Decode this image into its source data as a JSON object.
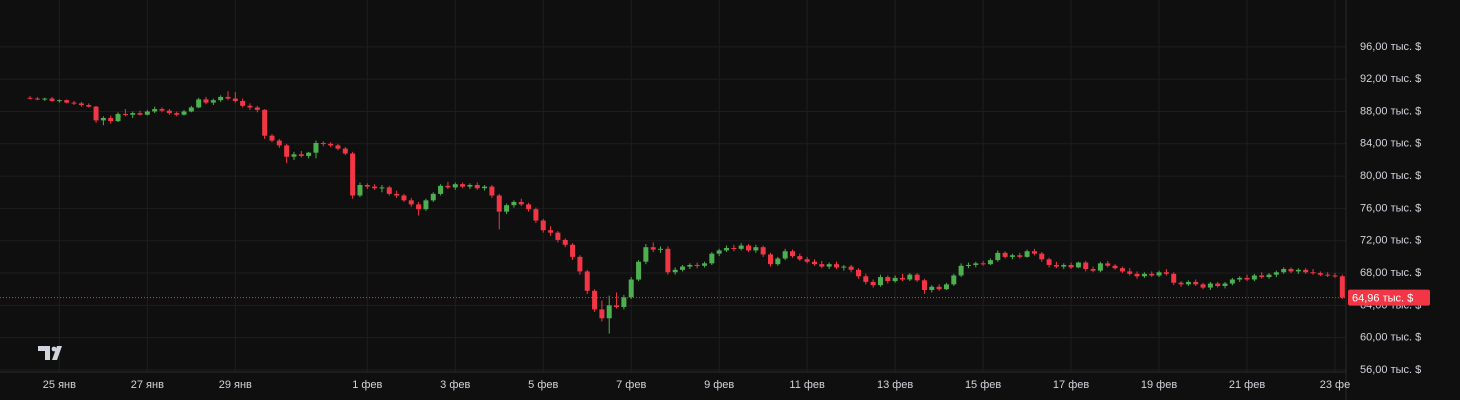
{
  "chart_data": {
    "type": "candlestick",
    "up_color": "#4caf50",
    "down_color": "#f23645",
    "grid": true,
    "ylim": [
      55.75,
      101.8
    ],
    "yticks": [
      {
        "value": 56,
        "label": "56,00 тыс. $"
      },
      {
        "value": 60,
        "label": "60,00 тыс. $"
      },
      {
        "value": 64,
        "label": "64,00 тыс. $"
      },
      {
        "value": 68,
        "label": "68,00 тыс. $"
      },
      {
        "value": 72,
        "label": "72,00 тыс. $"
      },
      {
        "value": 76,
        "label": "76,00 тыс. $"
      },
      {
        "value": 80,
        "label": "80,00 тыс. $"
      },
      {
        "value": 84,
        "label": "84,00 тыс. $"
      },
      {
        "value": 88,
        "label": "88,00 тыс. $"
      },
      {
        "value": 92,
        "label": "92,00 тыс. $"
      },
      {
        "value": 96,
        "label": "96,00 тыс. $"
      }
    ],
    "xlim": [
      -4.1,
      179.5
    ],
    "xticks": [
      {
        "value": 4,
        "label": "25 янв"
      },
      {
        "value": 16,
        "label": "27 янв"
      },
      {
        "value": 28,
        "label": "29 янв"
      },
      {
        "value": 46,
        "label": "1 фев"
      },
      {
        "value": 58,
        "label": "3 фев"
      },
      {
        "value": 70,
        "label": "5 фев"
      },
      {
        "value": 82,
        "label": "7 фев"
      },
      {
        "value": 94,
        "label": "9 фев"
      },
      {
        "value": 106,
        "label": "11 фев"
      },
      {
        "value": 118,
        "label": "13 фев"
      },
      {
        "value": 130,
        "label": "15 фев"
      },
      {
        "value": 142,
        "label": "17 фев"
      },
      {
        "value": 154,
        "label": "19 фев"
      },
      {
        "value": 166,
        "label": "21 фев"
      },
      {
        "value": 178,
        "label": "23 фе"
      }
    ],
    "last_price": 64.96,
    "last_price_label": "64,96 тыс. $",
    "ohlc": [
      [
        89.7,
        89.9,
        89.5,
        89.6
      ],
      [
        89.6,
        89.8,
        89.4,
        89.5
      ],
      [
        89.5,
        89.7,
        89.3,
        89.6
      ],
      [
        89.6,
        89.8,
        89.2,
        89.3
      ],
      [
        89.3,
        89.5,
        89.1,
        89.4
      ],
      [
        89.4,
        89.5,
        89.0,
        89.1
      ],
      [
        89.1,
        89.3,
        88.8,
        89.0
      ],
      [
        89.0,
        89.2,
        88.6,
        88.8
      ],
      [
        88.8,
        89.0,
        88.5,
        88.6
      ],
      [
        88.6,
        88.7,
        86.6,
        86.9
      ],
      [
        86.9,
        87.4,
        86.3,
        87.2
      ],
      [
        87.2,
        87.5,
        86.5,
        86.8
      ],
      [
        86.8,
        87.9,
        86.7,
        87.7
      ],
      [
        87.7,
        88.3,
        87.4,
        87.6
      ],
      [
        87.6,
        88.0,
        87.2,
        87.8
      ],
      [
        87.8,
        88.1,
        87.5,
        87.6
      ],
      [
        87.6,
        88.2,
        87.5,
        88.0
      ],
      [
        88.0,
        88.6,
        87.8,
        88.3
      ],
      [
        88.3,
        88.5,
        87.9,
        88.1
      ],
      [
        88.1,
        88.3,
        87.6,
        87.8
      ],
      [
        87.8,
        88.0,
        87.4,
        87.6
      ],
      [
        87.6,
        88.2,
        87.5,
        88.0
      ],
      [
        88.0,
        88.7,
        87.9,
        88.5
      ],
      [
        88.5,
        89.7,
        88.4,
        89.5
      ],
      [
        89.5,
        89.8,
        88.9,
        89.1
      ],
      [
        89.1,
        89.6,
        88.8,
        89.4
      ],
      [
        89.4,
        90.0,
        89.2,
        89.8
      ],
      [
        89.8,
        90.5,
        89.4,
        89.6
      ],
      [
        89.6,
        90.4,
        89.1,
        89.3
      ],
      [
        89.3,
        89.6,
        88.5,
        88.7
      ],
      [
        88.7,
        89.0,
        88.2,
        88.5
      ],
      [
        88.5,
        88.7,
        87.9,
        88.2
      ],
      [
        88.2,
        88.3,
        84.6,
        85.0
      ],
      [
        85.0,
        85.2,
        84.2,
        84.4
      ],
      [
        84.4,
        84.6,
        83.5,
        83.8
      ],
      [
        83.8,
        84.0,
        81.6,
        82.4
      ],
      [
        82.4,
        83.0,
        82.0,
        82.7
      ],
      [
        82.7,
        83.1,
        82.3,
        82.5
      ],
      [
        82.5,
        83.0,
        82.2,
        82.9
      ],
      [
        82.9,
        84.4,
        82.2,
        84.1
      ],
      [
        84.1,
        84.3,
        83.7,
        84.0
      ],
      [
        84.0,
        84.2,
        83.6,
        83.8
      ],
      [
        83.8,
        84.0,
        83.2,
        83.4
      ],
      [
        83.4,
        83.6,
        82.6,
        82.8
      ],
      [
        82.8,
        83.0,
        77.2,
        77.6
      ],
      [
        77.6,
        79.2,
        77.4,
        78.9
      ],
      [
        78.9,
        79.1,
        78.4,
        78.7
      ],
      [
        78.7,
        79.0,
        78.3,
        78.5
      ],
      [
        78.5,
        78.9,
        78.0,
        78.6
      ],
      [
        78.6,
        78.8,
        77.6,
        77.8
      ],
      [
        77.8,
        78.2,
        77.3,
        77.6
      ],
      [
        77.6,
        77.8,
        76.8,
        77.0
      ],
      [
        77.0,
        77.3,
        76.2,
        76.5
      ],
      [
        76.5,
        76.8,
        75.1,
        75.9
      ],
      [
        75.9,
        77.2,
        75.7,
        77.0
      ],
      [
        77.0,
        78.0,
        76.8,
        77.8
      ],
      [
        77.8,
        79.0,
        77.6,
        78.8
      ],
      [
        78.8,
        79.3,
        78.4,
        78.6
      ],
      [
        78.6,
        79.2,
        78.3,
        79.0
      ],
      [
        79.0,
        79.2,
        78.5,
        78.7
      ],
      [
        78.7,
        79.1,
        78.4,
        78.9
      ],
      [
        78.9,
        79.2,
        78.3,
        78.5
      ],
      [
        78.5,
        78.9,
        78.2,
        78.7
      ],
      [
        78.7,
        78.9,
        77.3,
        77.6
      ],
      [
        77.6,
        77.8,
        73.4,
        75.6
      ],
      [
        75.6,
        76.6,
        75.3,
        76.4
      ],
      [
        76.4,
        77.0,
        76.1,
        76.8
      ],
      [
        76.8,
        77.2,
        76.3,
        76.5
      ],
      [
        76.5,
        76.7,
        75.6,
        75.9
      ],
      [
        75.9,
        76.1,
        74.2,
        74.5
      ],
      [
        74.5,
        74.7,
        73.0,
        73.3
      ],
      [
        73.3,
        73.8,
        72.6,
        73.0
      ],
      [
        73.0,
        73.2,
        71.8,
        72.1
      ],
      [
        72.1,
        72.3,
        71.2,
        71.5
      ],
      [
        71.5,
        71.7,
        69.6,
        70.0
      ],
      [
        70.0,
        70.2,
        67.8,
        68.2
      ],
      [
        68.2,
        68.4,
        65.4,
        65.8
      ],
      [
        65.8,
        66.0,
        63.2,
        63.5
      ],
      [
        63.5,
        64.6,
        62.0,
        62.4
      ],
      [
        62.4,
        65.2,
        60.5,
        64.0
      ],
      [
        64.0,
        65.6,
        63.6,
        63.8
      ],
      [
        63.8,
        65.3,
        63.5,
        65.0
      ],
      [
        65.0,
        67.5,
        64.8,
        67.2
      ],
      [
        67.2,
        69.6,
        67.0,
        69.4
      ],
      [
        69.4,
        71.6,
        69.1,
        71.2
      ],
      [
        71.2,
        71.8,
        70.6,
        70.9
      ],
      [
        70.9,
        71.3,
        70.5,
        71.0
      ],
      [
        71.0,
        71.3,
        67.8,
        68.1
      ],
      [
        68.1,
        68.7,
        67.8,
        68.4
      ],
      [
        68.4,
        69.0,
        68.2,
        68.8
      ],
      [
        68.8,
        69.2,
        68.5,
        69.0
      ],
      [
        69.0,
        69.3,
        68.6,
        68.9
      ],
      [
        68.9,
        69.4,
        68.7,
        69.2
      ],
      [
        69.2,
        70.6,
        69.0,
        70.4
      ],
      [
        70.4,
        71.0,
        70.1,
        70.8
      ],
      [
        70.8,
        71.4,
        70.6,
        71.1
      ],
      [
        71.1,
        71.5,
        70.7,
        71.0
      ],
      [
        71.0,
        71.7,
        70.8,
        71.4
      ],
      [
        71.4,
        71.6,
        70.6,
        70.8
      ],
      [
        70.8,
        71.5,
        70.5,
        71.2
      ],
      [
        71.2,
        71.4,
        70.0,
        70.3
      ],
      [
        70.3,
        70.5,
        68.8,
        69.1
      ],
      [
        69.1,
        70.0,
        68.9,
        69.8
      ],
      [
        69.8,
        71.0,
        69.6,
        70.7
      ],
      [
        70.7,
        70.9,
        69.9,
        70.1
      ],
      [
        70.1,
        70.4,
        69.5,
        69.7
      ],
      [
        69.7,
        70.0,
        69.2,
        69.4
      ],
      [
        69.4,
        69.7,
        68.9,
        69.1
      ],
      [
        69.1,
        69.5,
        68.6,
        68.8
      ],
      [
        68.8,
        69.3,
        68.5,
        69.1
      ],
      [
        69.1,
        69.4,
        68.5,
        68.7
      ],
      [
        68.7,
        69.0,
        68.3,
        68.8
      ],
      [
        68.8,
        69.0,
        68.1,
        68.4
      ],
      [
        68.4,
        68.6,
        67.3,
        67.6
      ],
      [
        67.6,
        67.9,
        66.6,
        66.9
      ],
      [
        66.9,
        67.2,
        66.2,
        66.5
      ],
      [
        66.5,
        67.8,
        66.3,
        67.5
      ],
      [
        67.5,
        67.7,
        66.7,
        67.0
      ],
      [
        67.0,
        67.7,
        66.8,
        67.4
      ],
      [
        67.4,
        67.9,
        67.0,
        67.2
      ],
      [
        67.2,
        68.0,
        67.0,
        67.8
      ],
      [
        67.8,
        68.0,
        66.9,
        67.1
      ],
      [
        67.1,
        67.3,
        65.4,
        65.9
      ],
      [
        65.9,
        66.5,
        65.6,
        66.3
      ],
      [
        66.3,
        66.6,
        65.8,
        66.0
      ],
      [
        66.0,
        66.8,
        65.9,
        66.6
      ],
      [
        66.6,
        67.9,
        66.4,
        67.7
      ],
      [
        67.7,
        69.2,
        67.5,
        68.9
      ],
      [
        68.9,
        69.3,
        68.6,
        69.0
      ],
      [
        69.0,
        69.4,
        68.7,
        69.2
      ],
      [
        69.2,
        69.5,
        68.9,
        69.1
      ],
      [
        69.1,
        69.8,
        69.0,
        69.6
      ],
      [
        69.6,
        70.8,
        69.4,
        70.5
      ],
      [
        70.5,
        70.7,
        69.8,
        70.0
      ],
      [
        70.0,
        70.4,
        69.7,
        70.2
      ],
      [
        70.2,
        70.5,
        69.8,
        70.0
      ],
      [
        70.0,
        70.9,
        69.9,
        70.7
      ],
      [
        70.7,
        71.0,
        70.2,
        70.4
      ],
      [
        70.4,
        70.6,
        69.4,
        69.7
      ],
      [
        69.7,
        69.9,
        68.7,
        69.0
      ],
      [
        69.0,
        69.4,
        68.6,
        68.8
      ],
      [
        68.8,
        69.2,
        68.5,
        69.0
      ],
      [
        69.0,
        69.3,
        68.5,
        68.7
      ],
      [
        68.7,
        69.4,
        68.6,
        69.3
      ],
      [
        69.3,
        69.5,
        68.2,
        68.5
      ],
      [
        68.5,
        68.8,
        68.1,
        68.3
      ],
      [
        68.3,
        69.4,
        68.1,
        69.2
      ],
      [
        69.2,
        69.5,
        68.7,
        68.9
      ],
      [
        68.9,
        69.1,
        68.4,
        68.6
      ],
      [
        68.6,
        68.8,
        68.0,
        68.2
      ],
      [
        68.2,
        68.6,
        67.7,
        67.9
      ],
      [
        67.9,
        68.2,
        67.3,
        67.6
      ],
      [
        67.6,
        68.1,
        67.4,
        67.9
      ],
      [
        67.9,
        68.2,
        67.5,
        67.7
      ],
      [
        67.7,
        68.3,
        67.5,
        68.1
      ],
      [
        68.1,
        68.5,
        67.7,
        67.9
      ],
      [
        67.9,
        68.1,
        66.5,
        66.8
      ],
      [
        66.8,
        67.0,
        66.3,
        66.6
      ],
      [
        66.6,
        67.1,
        66.4,
        66.9
      ],
      [
        66.9,
        67.2,
        66.4,
        66.6
      ],
      [
        66.6,
        66.8,
        66.0,
        66.2
      ],
      [
        66.2,
        66.9,
        65.9,
        66.7
      ],
      [
        66.7,
        66.9,
        66.2,
        66.4
      ],
      [
        66.4,
        66.9,
        66.1,
        66.7
      ],
      [
        66.7,
        67.4,
        66.5,
        67.2
      ],
      [
        67.2,
        67.6,
        66.9,
        67.4
      ],
      [
        67.4,
        67.8,
        67.0,
        67.2
      ],
      [
        67.2,
        67.9,
        67.0,
        67.7
      ],
      [
        67.7,
        68.1,
        67.3,
        67.5
      ],
      [
        67.5,
        68.0,
        67.3,
        67.8
      ],
      [
        67.8,
        68.3,
        67.5,
        68.1
      ],
      [
        68.1,
        68.7,
        67.9,
        68.5
      ],
      [
        68.5,
        68.7,
        68.0,
        68.2
      ],
      [
        68.2,
        68.6,
        67.9,
        68.4
      ],
      [
        68.4,
        68.6,
        67.9,
        68.1
      ],
      [
        68.1,
        68.5,
        67.8,
        68.0
      ],
      [
        68.0,
        68.2,
        67.6,
        67.8
      ],
      [
        67.8,
        68.1,
        67.5,
        67.7
      ],
      [
        67.7,
        68.0,
        67.4,
        67.6
      ],
      [
        67.6,
        67.8,
        64.8,
        64.96
      ]
    ]
  }
}
